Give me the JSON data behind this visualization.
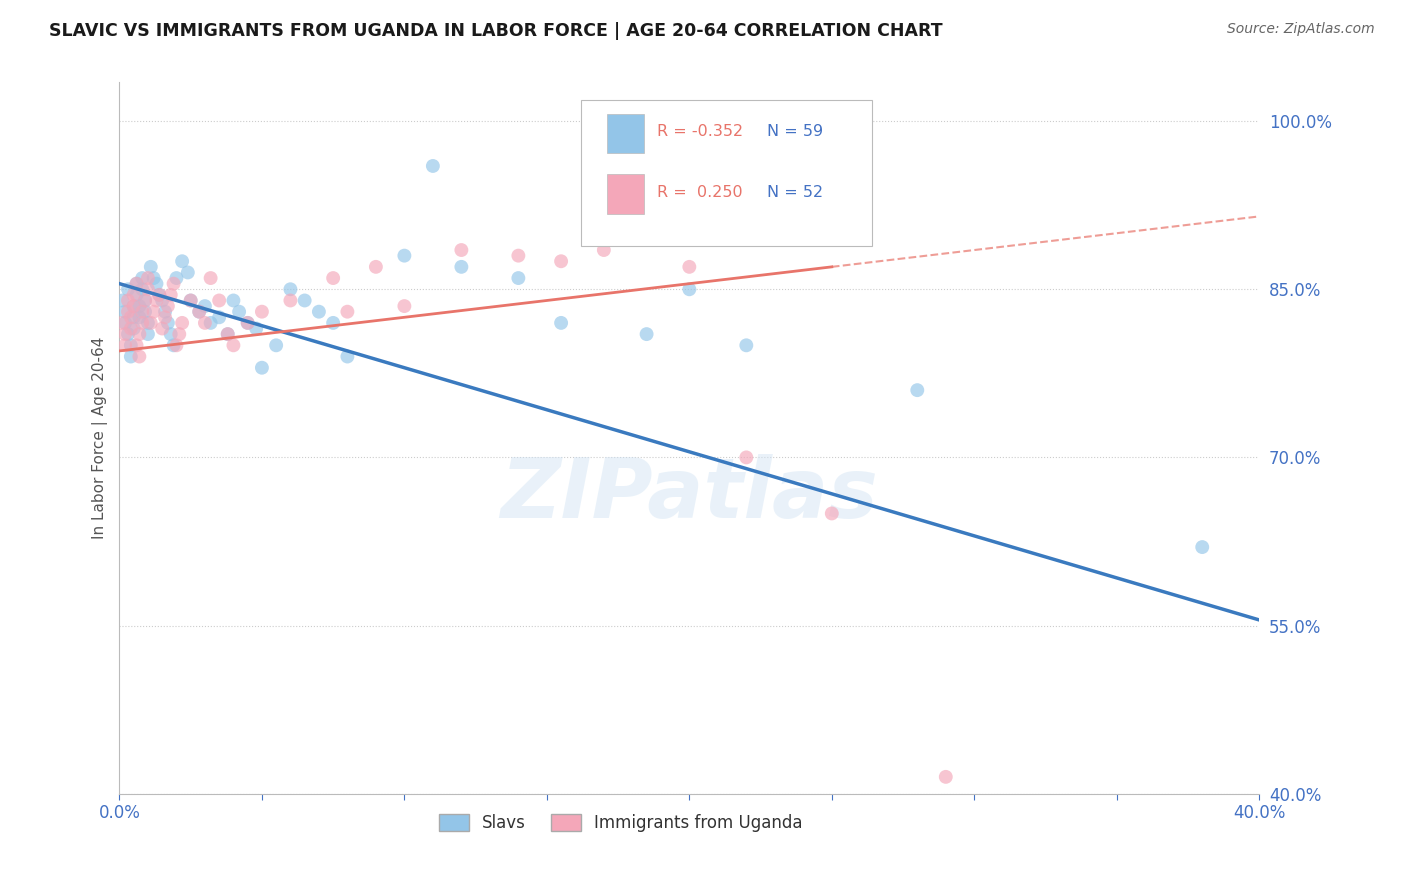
{
  "title": "SLAVIC VS IMMIGRANTS FROM UGANDA IN LABOR FORCE | AGE 20-64 CORRELATION CHART",
  "source": "Source: ZipAtlas.com",
  "ylabel": "In Labor Force | Age 20-64",
  "xlim": [
    0.0,
    0.4
  ],
  "ylim": [
    0.4,
    1.035
  ],
  "xticks": [
    0.0,
    0.05,
    0.1,
    0.15,
    0.2,
    0.25,
    0.3,
    0.35,
    0.4
  ],
  "ytick_positions": [
    0.4,
    0.55,
    0.7,
    0.85,
    1.0
  ],
  "yticklabels": [
    "40.0%",
    "55.0%",
    "70.0%",
    "85.0%",
    "100.0%"
  ],
  "grid_color": "#cccccc",
  "background_color": "#ffffff",
  "watermark": "ZIPatlas",
  "blue_color": "#93c5e8",
  "pink_color": "#f4a7b9",
  "blue_line_color": "#3a7abf",
  "pink_line_color": "#e8746a",
  "axis_label_color": "#4472c4",
  "tick_color": "#4472c4",
  "legend_R_blue": "-0.352",
  "legend_N_blue": "59",
  "legend_R_pink": "0.250",
  "legend_N_pink": "52",
  "blue_series_label": "Slavs",
  "pink_series_label": "Immigrants from Uganda",
  "blue_line_x": [
    0.0,
    0.4
  ],
  "blue_line_y": [
    0.855,
    0.555
  ],
  "pink_line_x": [
    0.0,
    0.4
  ],
  "pink_line_y": [
    0.795,
    0.915
  ]
}
